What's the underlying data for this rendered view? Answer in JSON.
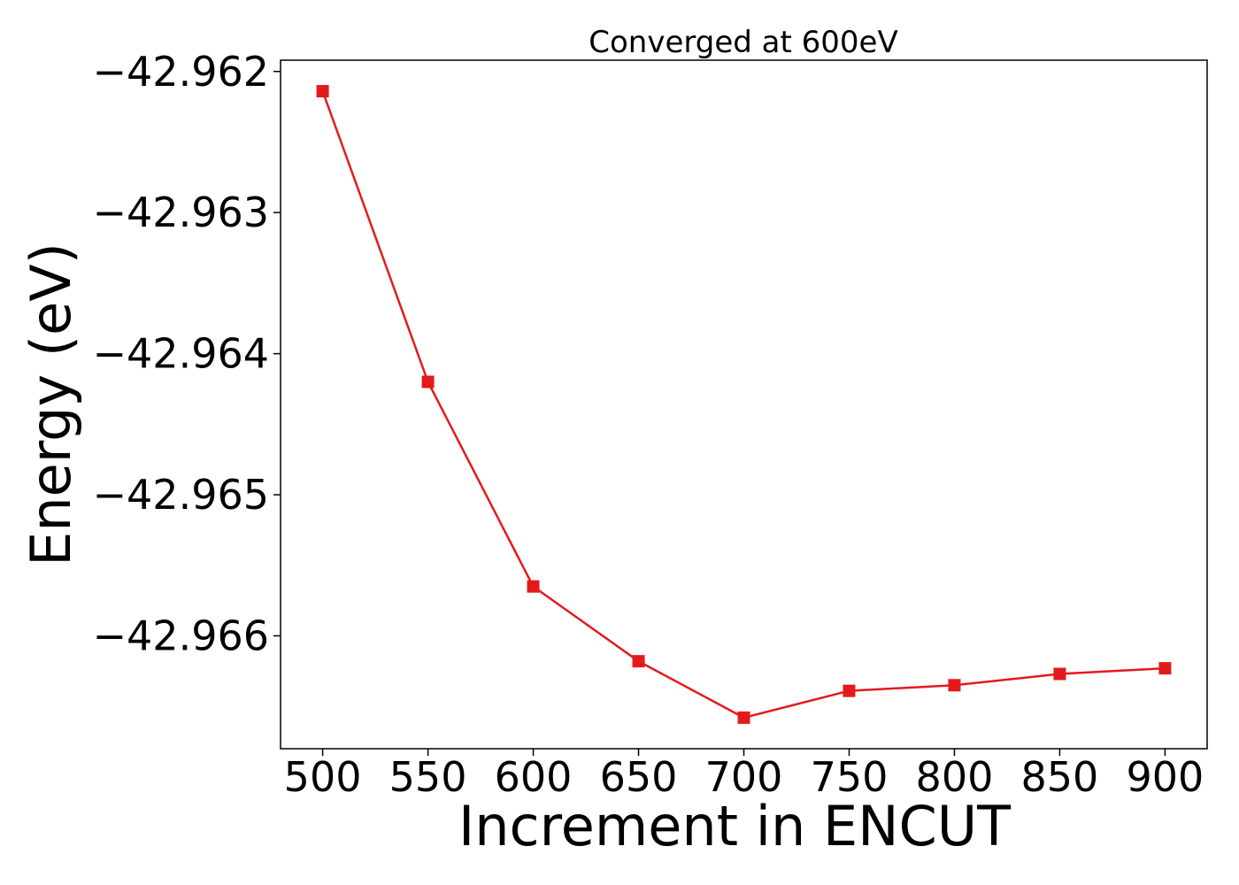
{
  "chart_data": {
    "type": "line",
    "title": "Converged at 600eV",
    "xlabel": "Increment in ENCUT",
    "ylabel": "Energy (eV)",
    "x": [
      500,
      550,
      600,
      650,
      700,
      750,
      800,
      850,
      900
    ],
    "series": [
      {
        "values": [
          -42.96214,
          -42.9642,
          -42.96565,
          -42.96618,
          -42.96658,
          -42.96639,
          -42.96635,
          -42.96627,
          -42.96623
        ],
        "color": "#e31a1c",
        "marker": "square"
      }
    ],
    "xticks": [
      500,
      550,
      600,
      650,
      700,
      750,
      800,
      850,
      900
    ],
    "xtick_labels": [
      "500",
      "550",
      "600",
      "650",
      "700",
      "750",
      "800",
      "850",
      "900"
    ],
    "yticks": [
      -42.962,
      -42.963,
      -42.964,
      -42.965,
      -42.966
    ],
    "ytick_labels": [
      "−42.962",
      "−42.963",
      "−42.964",
      "−42.965",
      "−42.966"
    ],
    "xlim": [
      480,
      920
    ],
    "ylim": [
      -42.9668,
      -42.96192
    ],
    "grid": false,
    "legend": "none"
  }
}
